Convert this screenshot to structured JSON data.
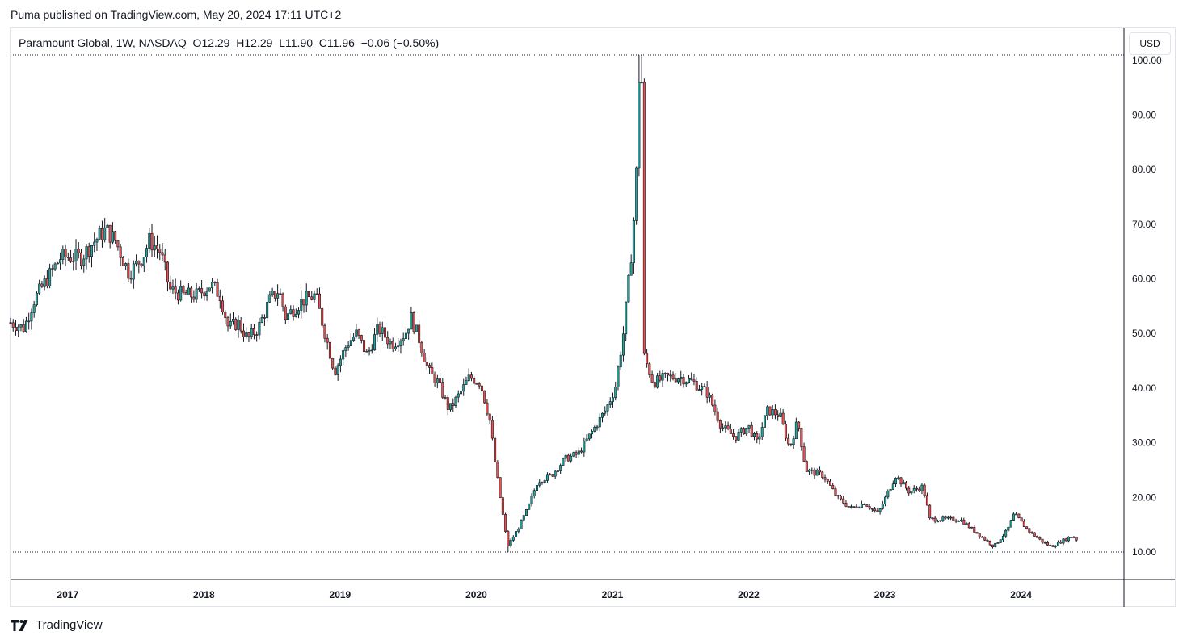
{
  "header": {
    "published": "Puma published on TradingView.com, May 20, 2024 17:11 UTC+2"
  },
  "legend": {
    "symbol": "Paramount Global, 1W, NASDAQ",
    "open_label": "O",
    "open": "12.29",
    "high_label": "H",
    "high": "12.29",
    "low_label": "L",
    "low": "11.90",
    "close_label": "C",
    "close": "11.96",
    "change": "−0.06 (−0.50%)"
  },
  "toolbar": {
    "currency": "USD"
  },
  "footer": {
    "brand": "TradingView"
  },
  "colors": {
    "up": "#26a69a",
    "down": "#ef5350",
    "bar": "#131722",
    "axis": "#131722",
    "dotted": "#131722"
  },
  "chart_data": {
    "type": "candlestick",
    "title": "Paramount Global, 1W, NASDAQ",
    "xlabel": "",
    "ylabel": "",
    "x_ticks": [
      "2017",
      "2018",
      "2019",
      "2020",
      "2021",
      "2022",
      "2023",
      "2024"
    ],
    "y_ticks": [
      "10.00",
      "20.00",
      "30.00",
      "40.00",
      "50.00",
      "60.00",
      "70.00",
      "80.00",
      "90.00",
      "100.00"
    ],
    "ylim": [
      5,
      103
    ],
    "xlim": [
      2016.58,
      2024.75
    ],
    "grid": false,
    "last_close": 11.96,
    "all_time_high": 101,
    "all_time_low": 10,
    "series_waypoints": [
      {
        "t": 2016.58,
        "v": 52
      },
      {
        "t": 2016.68,
        "v": 51
      },
      {
        "t": 2016.75,
        "v": 56
      },
      {
        "t": 2016.85,
        "v": 60
      },
      {
        "t": 2016.95,
        "v": 64
      },
      {
        "t": 2017.1,
        "v": 64
      },
      {
        "t": 2017.2,
        "v": 67
      },
      {
        "t": 2017.28,
        "v": 69
      },
      {
        "t": 2017.35,
        "v": 67
      },
      {
        "t": 2017.45,
        "v": 61
      },
      {
        "t": 2017.55,
        "v": 64
      },
      {
        "t": 2017.6,
        "v": 67
      },
      {
        "t": 2017.68,
        "v": 65
      },
      {
        "t": 2017.75,
        "v": 58
      },
      {
        "t": 2017.85,
        "v": 57
      },
      {
        "t": 2017.95,
        "v": 57
      },
      {
        "t": 2018.05,
        "v": 59
      },
      {
        "t": 2018.12,
        "v": 57
      },
      {
        "t": 2018.18,
        "v": 51
      },
      {
        "t": 2018.25,
        "v": 52
      },
      {
        "t": 2018.32,
        "v": 49
      },
      {
        "t": 2018.4,
        "v": 51
      },
      {
        "t": 2018.48,
        "v": 56
      },
      {
        "t": 2018.55,
        "v": 58
      },
      {
        "t": 2018.6,
        "v": 53
      },
      {
        "t": 2018.72,
        "v": 56
      },
      {
        "t": 2018.82,
        "v": 57
      },
      {
        "t": 2018.9,
        "v": 49
      },
      {
        "t": 2018.96,
        "v": 43
      },
      {
        "t": 2019.05,
        "v": 48
      },
      {
        "t": 2019.12,
        "v": 50
      },
      {
        "t": 2019.2,
        "v": 46
      },
      {
        "t": 2019.28,
        "v": 51
      },
      {
        "t": 2019.38,
        "v": 48
      },
      {
        "t": 2019.48,
        "v": 50
      },
      {
        "t": 2019.52,
        "v": 53
      },
      {
        "t": 2019.58,
        "v": 49
      },
      {
        "t": 2019.65,
        "v": 43
      },
      {
        "t": 2019.72,
        "v": 41
      },
      {
        "t": 2019.8,
        "v": 36
      },
      {
        "t": 2019.88,
        "v": 39
      },
      {
        "t": 2019.95,
        "v": 42
      },
      {
        "t": 2020.03,
        "v": 41
      },
      {
        "t": 2020.1,
        "v": 34
      },
      {
        "t": 2020.14,
        "v": 26
      },
      {
        "t": 2020.2,
        "v": 16
      },
      {
        "t": 2020.23,
        "v": 11
      },
      {
        "t": 2020.3,
        "v": 14
      },
      {
        "t": 2020.38,
        "v": 18
      },
      {
        "t": 2020.45,
        "v": 23
      },
      {
        "t": 2020.55,
        "v": 24
      },
      {
        "t": 2020.65,
        "v": 27
      },
      {
        "t": 2020.75,
        "v": 28
      },
      {
        "t": 2020.85,
        "v": 32
      },
      {
        "t": 2020.95,
        "v": 36
      },
      {
        "t": 2021.02,
        "v": 40
      },
      {
        "t": 2021.08,
        "v": 50
      },
      {
        "t": 2021.13,
        "v": 62
      },
      {
        "t": 2021.17,
        "v": 75
      },
      {
        "t": 2021.2,
        "v": 96
      },
      {
        "t": 2021.23,
        "v": 46
      },
      {
        "t": 2021.3,
        "v": 41
      },
      {
        "t": 2021.4,
        "v": 42
      },
      {
        "t": 2021.5,
        "v": 42
      },
      {
        "t": 2021.6,
        "v": 41
      },
      {
        "t": 2021.7,
        "v": 39
      },
      {
        "t": 2021.8,
        "v": 33
      },
      {
        "t": 2021.9,
        "v": 31
      },
      {
        "t": 2022.0,
        "v": 33
      },
      {
        "t": 2022.06,
        "v": 30
      },
      {
        "t": 2022.14,
        "v": 36
      },
      {
        "t": 2022.23,
        "v": 35
      },
      {
        "t": 2022.3,
        "v": 29
      },
      {
        "t": 2022.36,
        "v": 34
      },
      {
        "t": 2022.42,
        "v": 25
      },
      {
        "t": 2022.55,
        "v": 24
      },
      {
        "t": 2022.65,
        "v": 20
      },
      {
        "t": 2022.75,
        "v": 18
      },
      {
        "t": 2022.85,
        "v": 19
      },
      {
        "t": 2022.95,
        "v": 17
      },
      {
        "t": 2023.08,
        "v": 24
      },
      {
        "t": 2023.18,
        "v": 21
      },
      {
        "t": 2023.28,
        "v": 22
      },
      {
        "t": 2023.33,
        "v": 16
      },
      {
        "t": 2023.45,
        "v": 16
      },
      {
        "t": 2023.55,
        "v": 16
      },
      {
        "t": 2023.65,
        "v": 14
      },
      {
        "t": 2023.8,
        "v": 11
      },
      {
        "t": 2023.9,
        "v": 14
      },
      {
        "t": 2023.95,
        "v": 17
      },
      {
        "t": 2024.05,
        "v": 14
      },
      {
        "t": 2024.15,
        "v": 12
      },
      {
        "t": 2024.22,
        "v": 11
      },
      {
        "t": 2024.3,
        "v": 12
      },
      {
        "t": 2024.38,
        "v": 13
      },
      {
        "t": 2024.42,
        "v": 12
      }
    ]
  }
}
